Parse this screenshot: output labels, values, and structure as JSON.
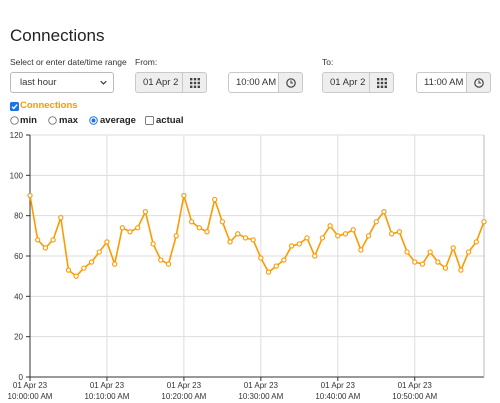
{
  "page": {
    "title": "Connections"
  },
  "range": {
    "label": "Select or enter date/time range",
    "selected": "last hour"
  },
  "from": {
    "label": "From:",
    "date": "01 Apr 2",
    "time": "10:00 AM"
  },
  "to": {
    "label": "To:",
    "date": "01 Apr 2",
    "time": "11:00 AM"
  },
  "series_toggle": {
    "label": "Connections",
    "checked": true,
    "color": "#ff9900"
  },
  "stat_options": [
    {
      "label": "min",
      "type": "radio",
      "checked": false
    },
    {
      "label": "max",
      "type": "radio",
      "checked": false
    },
    {
      "label": "average",
      "type": "radio",
      "checked": true
    },
    {
      "label": "actual",
      "type": "checkbox",
      "checked": false
    }
  ],
  "icons": {
    "date_addon": "calendar-grid-icon",
    "time_addon": "clock-icon",
    "select_caret": "chevron-down-icon"
  },
  "colors": {
    "series": "#ff9900",
    "grid": "#dddddd",
    "axis": "#333333",
    "checkbox": "#1a73e8"
  },
  "chart_data": {
    "type": "line",
    "ylim": [
      0,
      120
    ],
    "yticks": [
      "0",
      "20",
      "40",
      "60",
      "80",
      "100",
      "120"
    ],
    "xlim_minutes": [
      0,
      59
    ],
    "xticks": [
      {
        "minute": 0,
        "date": "01 Apr 23",
        "time": "10:00:00 AM"
      },
      {
        "minute": 10,
        "date": "01 Apr 23",
        "time": "10:10:00 AM"
      },
      {
        "minute": 20,
        "date": "01 Apr 23",
        "time": "10:20:00 AM"
      },
      {
        "minute": 30,
        "date": "01 Apr 23",
        "time": "10:30:00 AM"
      },
      {
        "minute": 40,
        "date": "01 Apr 23",
        "time": "10:40:00 AM"
      },
      {
        "minute": 50,
        "date": "01 Apr 23",
        "time": "10:50:00 AM"
      }
    ],
    "grid": true,
    "series": [
      {
        "name": "Connections",
        "values": [
          90,
          68,
          64,
          68,
          79,
          53,
          50,
          54,
          57,
          62,
          67,
          56,
          74,
          72,
          74,
          82,
          66,
          58,
          56,
          70,
          90,
          77,
          74,
          72,
          88,
          77,
          67,
          71,
          69,
          68,
          59,
          52,
          55,
          58,
          65,
          66,
          69,
          60,
          69,
          75,
          70,
          71,
          73,
          63,
          70,
          77,
          82,
          71,
          72,
          62,
          57,
          56,
          62,
          57,
          54,
          64,
          53,
          62,
          67,
          77
        ]
      }
    ]
  }
}
